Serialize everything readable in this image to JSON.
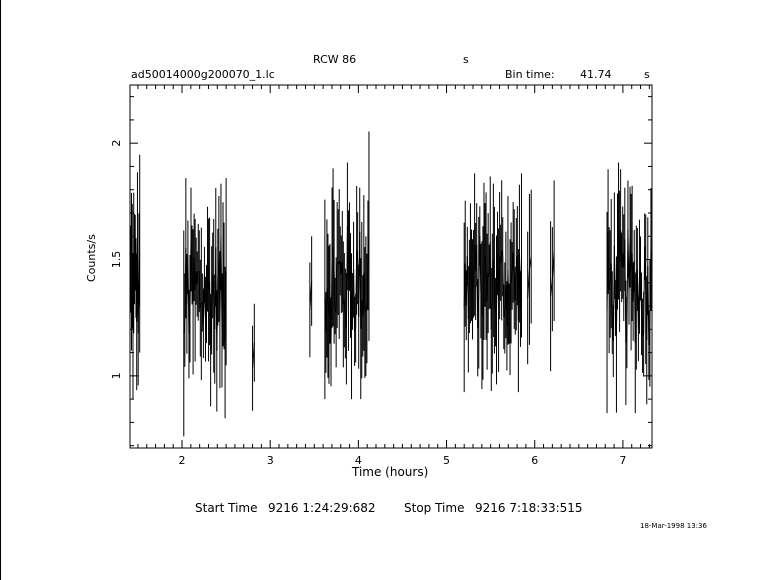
{
  "header": {
    "title": "RCW 86",
    "title_unit": "s",
    "file_name": "ad50014000g200070_1.lc",
    "bin_time_label": "Bin time:",
    "bin_time_value": "41.74",
    "bin_time_unit": "s"
  },
  "footer": {
    "start_label": "Start Time",
    "start_value": "9216  1:24:29:682",
    "stop_label": "Stop Time",
    "stop_value": "9216  7:18:33:515",
    "date_stamp": "18-Mar-1998 13:36"
  },
  "chart_data": {
    "type": "scatter",
    "title": "RCW 86",
    "xlabel": "Time (hours)",
    "ylabel": "Counts/s",
    "xlim": [
      1.41,
      7.33
    ],
    "ylim": [
      0.69,
      2.25
    ],
    "x_ticks": [
      2,
      3,
      4,
      5,
      6,
      7
    ],
    "y_ticks": [
      1,
      1.5,
      2
    ],
    "x_tick_labels": [
      "2",
      "3",
      "4",
      "5",
      "6",
      "7"
    ],
    "y_tick_labels": [
      "1",
      "1.5",
      "2"
    ],
    "grid": false,
    "legend": "none",
    "error_bars": "vertical",
    "segments": [
      {
        "x_start": 1.41,
        "x_end": 1.52,
        "y_min": 0.82,
        "y_max": 1.95,
        "n_points": 14,
        "mean": 1.38
      },
      {
        "x_start": 2.02,
        "x_end": 2.5,
        "y_min": 0.74,
        "y_max": 1.85,
        "n_points": 42,
        "mean": 1.35
      },
      {
        "x_start": 2.8,
        "x_end": 2.82,
        "y_min": 0.85,
        "y_max": 1.31,
        "n_points": 2,
        "mean": 1.1
      },
      {
        "x_start": 3.45,
        "x_end": 3.47,
        "y_min": 1.08,
        "y_max": 1.6,
        "n_points": 2,
        "mean": 1.35
      },
      {
        "x_start": 3.62,
        "x_end": 4.12,
        "y_min": 0.9,
        "y_max": 2.05,
        "n_points": 44,
        "mean": 1.4
      },
      {
        "x_start": 5.2,
        "x_end": 5.85,
        "y_min": 0.93,
        "y_max": 1.87,
        "n_points": 56,
        "mean": 1.4
      },
      {
        "x_start": 5.92,
        "x_end": 5.96,
        "y_min": 1.05,
        "y_max": 1.8,
        "n_points": 3,
        "mean": 1.4
      },
      {
        "x_start": 6.18,
        "x_end": 6.22,
        "y_min": 1.02,
        "y_max": 1.84,
        "n_points": 3,
        "mean": 1.45
      },
      {
        "x_start": 6.82,
        "x_end": 7.33,
        "y_min": 0.84,
        "y_max": 1.97,
        "n_points": 44,
        "mean": 1.38
      }
    ]
  }
}
